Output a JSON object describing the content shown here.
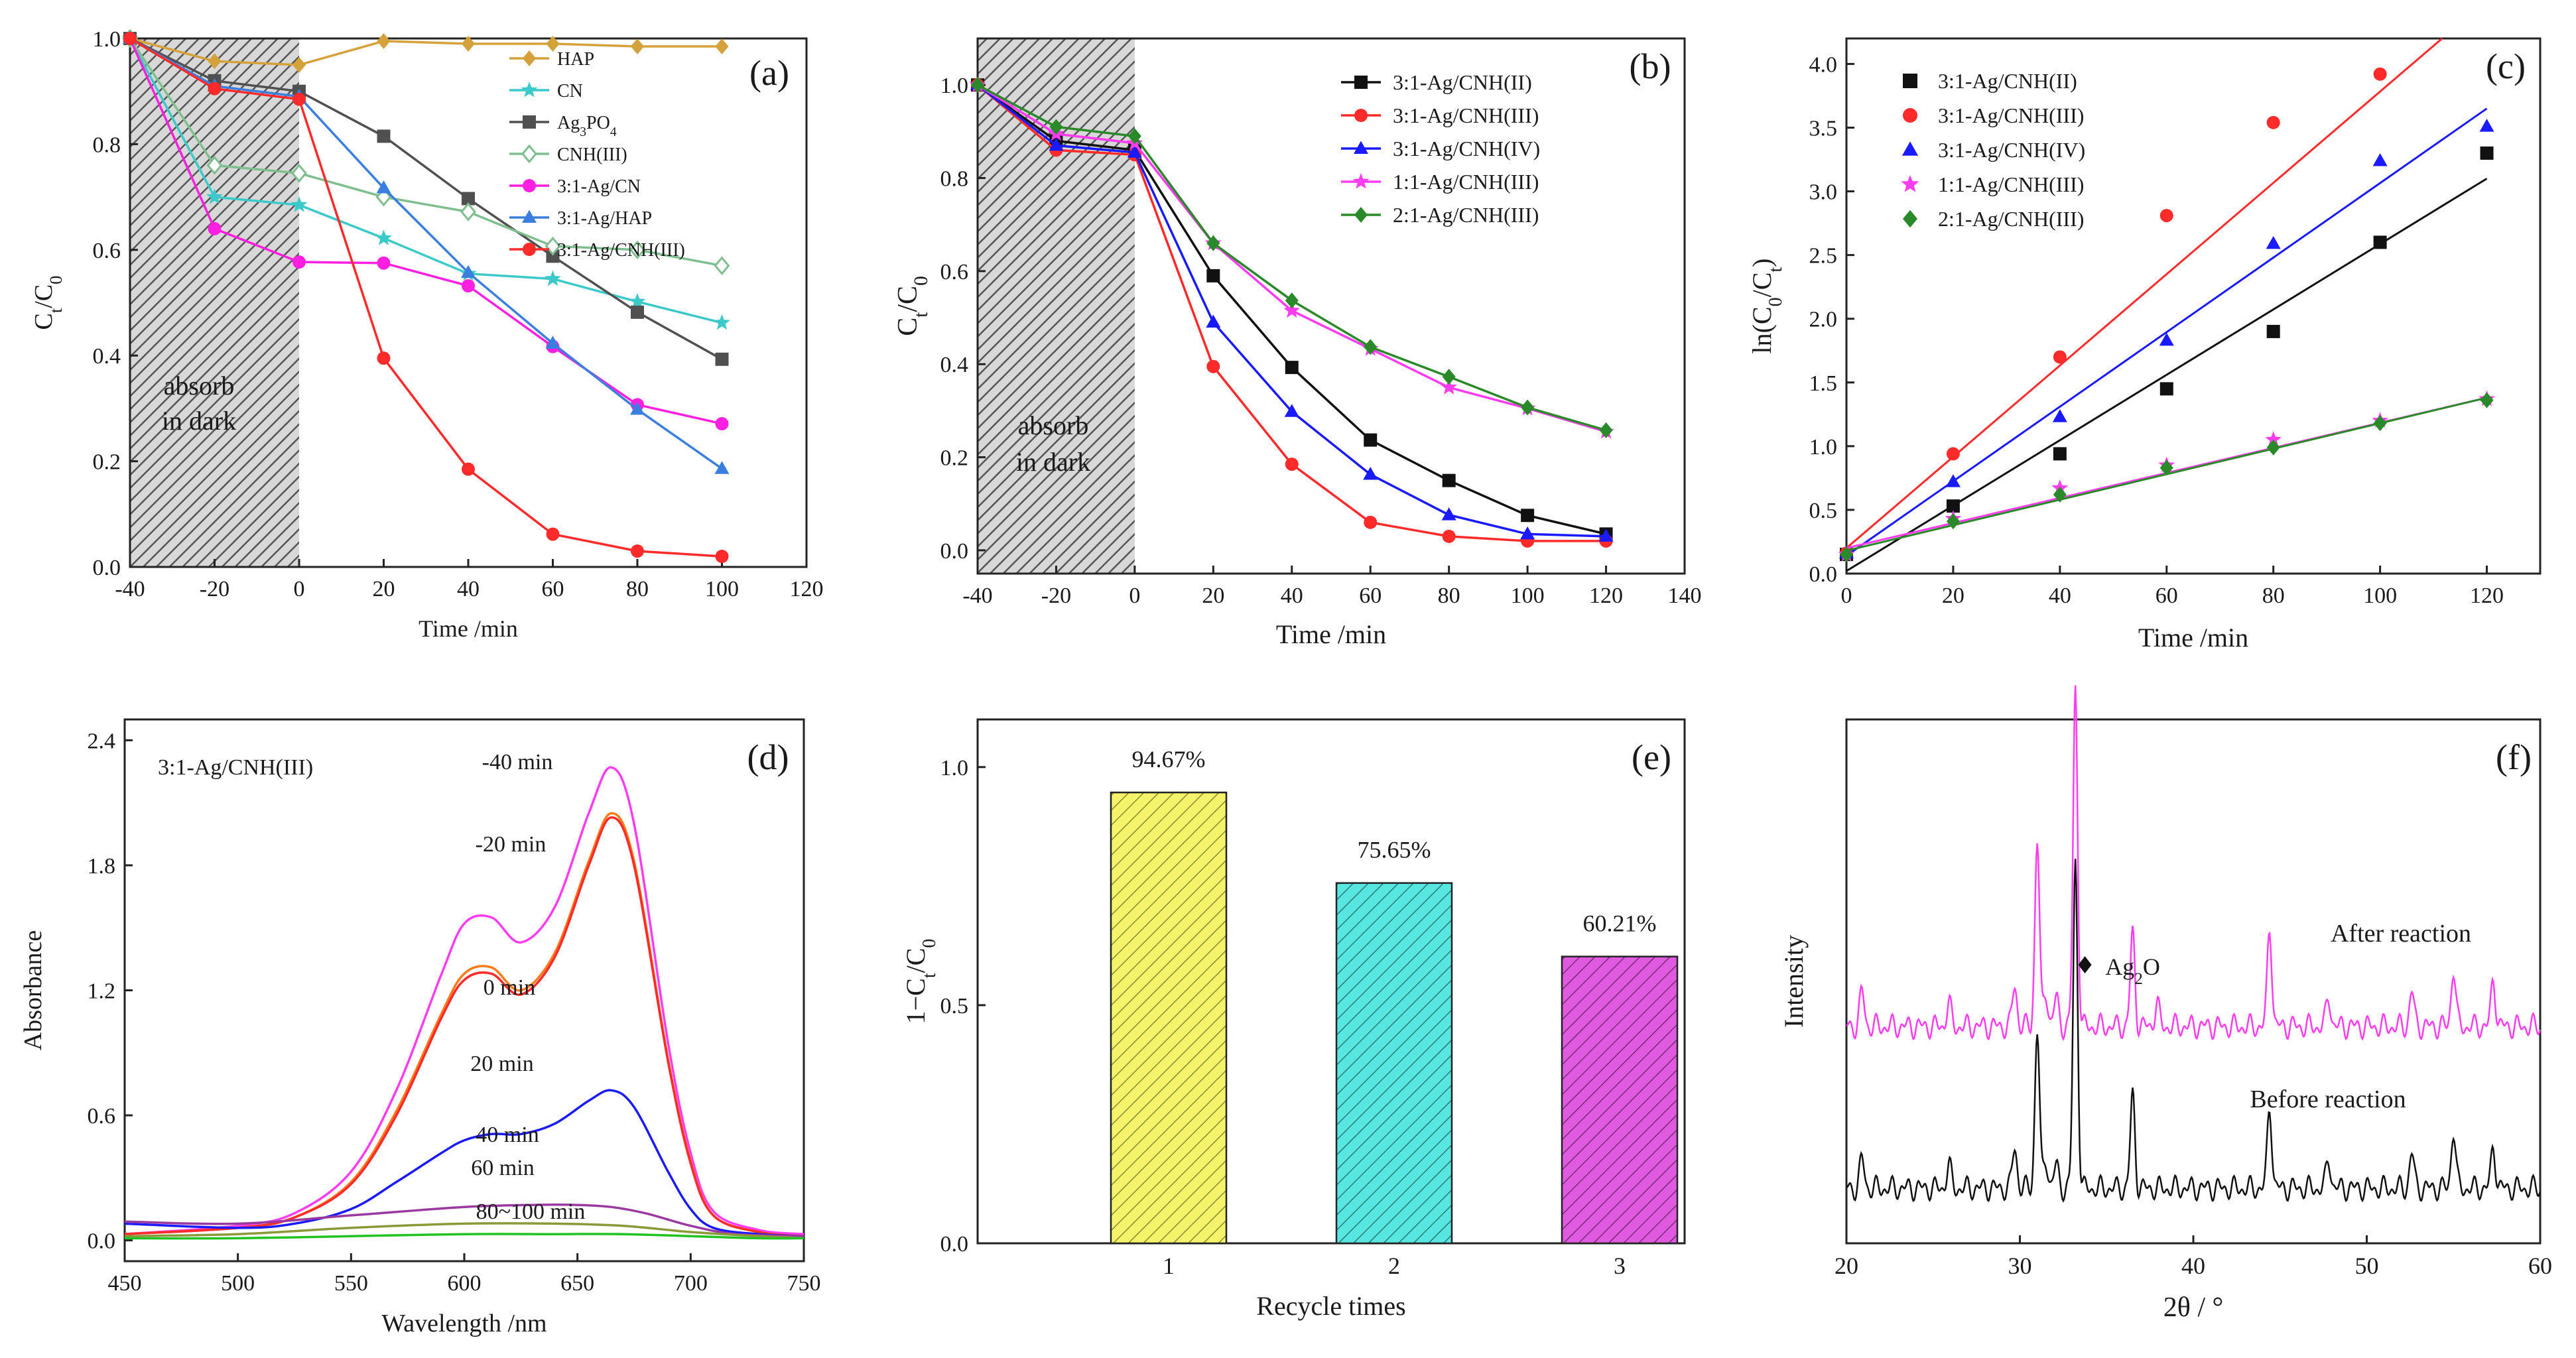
{
  "figure_title": "",
  "colors": {
    "hap": "#d4a13a",
    "cn": "#3cc9c9",
    "ag3po4": "#505050",
    "cnh3": "#7fbf8f",
    "agcn": "#ff1fe0",
    "aghap": "#3a7fe0",
    "agcnh3": "#ff2a2a",
    "black": "#111111",
    "red": "#ff2a2a",
    "blue": "#1a1aff",
    "magenta": "#ff3cf0",
    "green": "#2a8a2a",
    "orange": "#ff7a1a",
    "violet": "#9a3aa0",
    "olive": "#8a9a3a",
    "lime": "#22c222",
    "bar1": "#f4f36a",
    "bar2": "#57e6e0",
    "bar3": "#e05ae0"
  },
  "chart_data": [
    {
      "panel": "(a)",
      "type": "line",
      "title": "",
      "xlabel": "Time /min",
      "ylabel": "Ct/C0",
      "xlim": [
        -40,
        120
      ],
      "ylim": [
        0.0,
        1.0
      ],
      "xticks": [
        "-40",
        "-20",
        "0",
        "20",
        "40",
        "60",
        "80",
        "100",
        "120"
      ],
      "yticks": [
        "0.0",
        "0.2",
        "0.4",
        "0.6",
        "0.8",
        "1.0"
      ],
      "shade_label": [
        "absorb",
        "in dark"
      ],
      "shade_range": [
        -40,
        0
      ],
      "legend": "top-right",
      "series": [
        {
          "name": "HAP",
          "color_key": "hap",
          "marker": "diamond",
          "x": [
            -40,
            -20,
            0,
            20,
            40,
            60,
            80,
            100
          ],
          "y": [
            1.0,
            0.957,
            0.95,
            0.995,
            0.99,
            0.99,
            0.985,
            0.985
          ]
        },
        {
          "name": "CN",
          "color_key": "cn",
          "marker": "star",
          "x": [
            -40,
            -20,
            0,
            20,
            40,
            60,
            80,
            100
          ],
          "y": [
            1.0,
            0.7,
            0.685,
            0.622,
            0.555,
            0.545,
            0.502,
            0.462
          ]
        },
        {
          "name": "Ag3PO4",
          "color_key": "ag3po4",
          "marker": "square",
          "x": [
            -40,
            -20,
            0,
            20,
            40,
            60,
            80,
            100
          ],
          "y": [
            1.0,
            0.92,
            0.9,
            0.815,
            0.697,
            0.588,
            0.482,
            0.393
          ]
        },
        {
          "name": "CNH(III)",
          "color_key": "cnh3",
          "marker": "diamond-open",
          "x": [
            -40,
            -20,
            0,
            20,
            40,
            60,
            80,
            100
          ],
          "y": [
            1.0,
            0.76,
            0.745,
            0.7,
            0.672,
            0.607,
            0.6,
            0.57
          ]
        },
        {
          "name": "3:1-Ag/CN",
          "color_key": "agcn",
          "marker": "circle",
          "x": [
            -40,
            -20,
            0,
            20,
            40,
            60,
            80,
            100
          ],
          "y": [
            1.0,
            0.64,
            0.577,
            0.575,
            0.532,
            0.417,
            0.307,
            0.271
          ]
        },
        {
          "name": "3:1-Ag/HAP",
          "color_key": "aghap",
          "marker": "triangle",
          "x": [
            -40,
            -20,
            0,
            20,
            40,
            60,
            80,
            100
          ],
          "y": [
            1.0,
            0.91,
            0.89,
            0.717,
            0.557,
            0.423,
            0.298,
            0.186
          ]
        },
        {
          "name": "3:1-Ag/CNH(III)",
          "color_key": "agcnh3",
          "marker": "circle",
          "x": [
            -40,
            -20,
            0,
            20,
            40,
            60,
            80,
            100
          ],
          "y": [
            1.0,
            0.905,
            0.885,
            0.395,
            0.185,
            0.062,
            0.03,
            0.02
          ]
        }
      ]
    },
    {
      "panel": "(b)",
      "type": "line",
      "title": "",
      "xlabel": "Time /min",
      "ylabel": "Ct/C0",
      "xlim": [
        -40,
        140
      ],
      "ylim": [
        -0.05,
        1.1
      ],
      "xticks": [
        "-40",
        "-20",
        "0",
        "20",
        "40",
        "60",
        "80",
        "100",
        "120",
        "140"
      ],
      "yticks": [
        "0.0",
        "0.2",
        "0.4",
        "0.6",
        "0.8",
        "1.0"
      ],
      "shade_label": [
        "absorb",
        "in dark"
      ],
      "shade_range": [
        -40,
        0
      ],
      "legend": "top-right",
      "series": [
        {
          "name": "3:1-Ag/CNH(II)",
          "color_key": "black",
          "marker": "square",
          "x": [
            -40,
            -20,
            0,
            20,
            40,
            60,
            80,
            100,
            120
          ],
          "y": [
            1.0,
            0.88,
            0.86,
            0.59,
            0.393,
            0.237,
            0.15,
            0.075,
            0.035
          ]
        },
        {
          "name": "3:1-Ag/CNH(III)",
          "color_key": "red",
          "marker": "circle",
          "x": [
            -40,
            -20,
            0,
            20,
            40,
            60,
            80,
            100,
            120
          ],
          "y": [
            1.0,
            0.86,
            0.85,
            0.395,
            0.185,
            0.06,
            0.03,
            0.02,
            0.02
          ]
        },
        {
          "name": "3:1-Ag/CNH(IV)",
          "color_key": "blue",
          "marker": "triangle",
          "x": [
            -40,
            -20,
            0,
            20,
            40,
            60,
            80,
            100,
            120
          ],
          "y": [
            1.0,
            0.87,
            0.855,
            0.49,
            0.298,
            0.163,
            0.076,
            0.035,
            0.03
          ]
        },
        {
          "name": "1:1-Ag/CNH(III)",
          "color_key": "magenta",
          "marker": "star",
          "x": [
            -40,
            -20,
            0,
            20,
            40,
            60,
            80,
            100,
            120
          ],
          "y": [
            1.0,
            0.895,
            0.875,
            0.66,
            0.515,
            0.433,
            0.35,
            0.305,
            0.255
          ]
        },
        {
          "name": "2:1-Ag/CNH(III)",
          "color_key": "green",
          "marker": "diamond",
          "x": [
            -40,
            -20,
            0,
            20,
            40,
            60,
            80,
            100,
            120
          ],
          "y": [
            1.0,
            0.91,
            0.89,
            0.66,
            0.537,
            0.437,
            0.373,
            0.307,
            0.258
          ]
        }
      ]
    },
    {
      "panel": "(c)",
      "type": "scatter",
      "title": "",
      "xlabel": "Time /min",
      "ylabel": "ln(C0/Ct)",
      "xlim": [
        0,
        130
      ],
      "ylim": [
        0.0,
        4.2
      ],
      "xticks": [
        "0",
        "20",
        "40",
        "60",
        "80",
        "100",
        "120"
      ],
      "yticks": [
        "0.0",
        "0.5",
        "1.0",
        "1.5",
        "2.0",
        "2.5",
        "3.0",
        "3.5",
        "4.0"
      ],
      "legend": "top-left",
      "series": [
        {
          "name": "3:1-Ag/CNH(II)",
          "color_key": "black",
          "marker": "square",
          "x": [
            0,
            20,
            40,
            60,
            80,
            100,
            120
          ],
          "y": [
            0.15,
            0.53,
            0.94,
            1.45,
            1.9,
            2.6,
            3.3
          ],
          "fit": [
            [
              0,
              0.02
            ],
            [
              120,
              3.1
            ]
          ]
        },
        {
          "name": "3:1-Ag/CNH(III)",
          "color_key": "red",
          "marker": "circle",
          "x": [
            0,
            20,
            40,
            60,
            80,
            100
          ],
          "y": [
            0.16,
            0.94,
            1.7,
            2.81,
            3.54,
            3.92
          ],
          "fit": [
            [
              0,
              0.2
            ],
            [
              120,
              4.5
            ]
          ]
        },
        {
          "name": "3:1-Ag/CNH(IV)",
          "color_key": "blue",
          "marker": "triangle",
          "x": [
            0,
            20,
            40,
            60,
            80,
            100,
            120
          ],
          "y": [
            0.16,
            0.72,
            1.23,
            1.83,
            2.59,
            3.24,
            3.51
          ],
          "fit": [
            [
              0,
              0.14
            ],
            [
              120,
              3.65
            ]
          ]
        },
        {
          "name": "1:1-Ag/CNH(III)",
          "color_key": "magenta",
          "marker": "star",
          "x": [
            0,
            20,
            40,
            60,
            80,
            100,
            120
          ],
          "y": [
            0.15,
            0.43,
            0.67,
            0.85,
            1.05,
            1.2,
            1.37
          ],
          "fit": [
            [
              0,
              0.2
            ],
            [
              120,
              1.38
            ]
          ]
        },
        {
          "name": "2:1-Ag/CNH(III)",
          "color_key": "green",
          "marker": "diamond",
          "x": [
            0,
            20,
            40,
            60,
            80,
            100,
            120
          ],
          "y": [
            0.15,
            0.41,
            0.62,
            0.83,
            0.99,
            1.18,
            1.36
          ],
          "fit": [
            [
              0,
              0.18
            ],
            [
              120,
              1.38
            ]
          ]
        }
      ]
    },
    {
      "panel": "(d)",
      "type": "line",
      "title": "",
      "xlabel": "Wavelength /nm",
      "ylabel": "Absorbance",
      "xlim": [
        450,
        750
      ],
      "ylim": [
        -0.1,
        2.5
      ],
      "xticks": [
        "450",
        "500",
        "550",
        "600",
        "650",
        "700",
        "750"
      ],
      "yticks": [
        "0.0",
        "0.6",
        "1.2",
        "1.8",
        "2.4"
      ],
      "sample_label": "3:1-Ag/CNH(III)",
      "annotations": [
        "-40 min",
        "-20 min",
        "0 min",
        "20 min",
        "40 min",
        "60 min",
        "80~100 min"
      ],
      "series": [
        {
          "name": "-40 min",
          "color_key": "magenta",
          "x": [
            450,
            500,
            525,
            550,
            570,
            590,
            600,
            612,
            625,
            640,
            655,
            665,
            675,
            690,
            700,
            710,
            730,
            750
          ],
          "y": [
            0.03,
            0.07,
            0.13,
            0.33,
            0.72,
            1.28,
            1.52,
            1.55,
            1.43,
            1.6,
            2.05,
            2.27,
            2.0,
            0.95,
            0.42,
            0.14,
            0.05,
            0.03
          ]
        },
        {
          "name": "-20 min",
          "color_key": "orange",
          "x": [
            450,
            500,
            525,
            550,
            570,
            590,
            600,
            612,
            625,
            640,
            655,
            665,
            675,
            690,
            700,
            710,
            730,
            750
          ],
          "y": [
            0.03,
            0.06,
            0.11,
            0.28,
            0.62,
            1.09,
            1.28,
            1.31,
            1.2,
            1.38,
            1.82,
            2.05,
            1.82,
            0.87,
            0.38,
            0.12,
            0.04,
            0.02
          ]
        },
        {
          "name": "0 min",
          "color_key": "red",
          "x": [
            450,
            500,
            525,
            550,
            570,
            590,
            600,
            612,
            625,
            640,
            655,
            665,
            675,
            690,
            700,
            710,
            730,
            750
          ],
          "y": [
            0.03,
            0.06,
            0.11,
            0.27,
            0.6,
            1.07,
            1.25,
            1.28,
            1.18,
            1.36,
            1.8,
            2.03,
            1.8,
            0.86,
            0.37,
            0.12,
            0.04,
            0.02
          ]
        },
        {
          "name": "20 min",
          "color_key": "blue",
          "x": [
            450,
            500,
            525,
            550,
            570,
            590,
            600,
            612,
            625,
            640,
            655,
            665,
            675,
            690,
            700,
            710,
            730,
            750
          ],
          "y": [
            0.08,
            0.06,
            0.08,
            0.15,
            0.28,
            0.42,
            0.48,
            0.51,
            0.51,
            0.56,
            0.67,
            0.72,
            0.64,
            0.33,
            0.15,
            0.06,
            0.03,
            0.02
          ]
        },
        {
          "name": "40 min",
          "color_key": "violet",
          "x": [
            450,
            500,
            550,
            600,
            630,
            650,
            665,
            680,
            700,
            720,
            750
          ],
          "y": [
            0.09,
            0.08,
            0.12,
            0.16,
            0.17,
            0.17,
            0.16,
            0.13,
            0.07,
            0.03,
            0.02
          ]
        },
        {
          "name": "60 min",
          "color_key": "olive",
          "x": [
            450,
            500,
            550,
            600,
            640,
            670,
            700,
            730,
            750
          ],
          "y": [
            0.02,
            0.03,
            0.06,
            0.08,
            0.08,
            0.07,
            0.04,
            0.02,
            0.01
          ]
        },
        {
          "name": "80~100 min",
          "color_key": "lime",
          "x": [
            450,
            500,
            550,
            600,
            640,
            670,
            700,
            730,
            750
          ],
          "y": [
            0.01,
            0.01,
            0.02,
            0.03,
            0.03,
            0.03,
            0.02,
            0.01,
            0.01
          ]
        }
      ]
    },
    {
      "panel": "(e)",
      "type": "bar",
      "title": "",
      "xlabel": "Recycle times",
      "ylabel": "1-Ct/C0",
      "ylim": [
        0.0,
        1.1
      ],
      "yticks": [
        "0.0",
        "0.5",
        "1.0"
      ],
      "categories": [
        "1",
        "2",
        "3"
      ],
      "values": [
        0.9467,
        0.7565,
        0.6021
      ],
      "labels": [
        "94.67%",
        "75.65%",
        "60.21%"
      ]
    },
    {
      "panel": "(f)",
      "type": "line",
      "title": "",
      "xlabel": "2θ / °",
      "ylabel": "Intensity",
      "xlim": [
        20,
        60
      ],
      "xticks": [
        "20",
        "30",
        "40",
        "50",
        "60"
      ],
      "marker_label": "Ag2O",
      "series": [
        {
          "name": "After reaction",
          "color_key": "magenta",
          "peaks": [
            [
              20.9,
              0.06
            ],
            [
              25.9,
              0.04
            ],
            [
              29.7,
              0.07
            ],
            [
              31.0,
              0.32
            ],
            [
              31.5,
              0.06
            ],
            [
              32.1,
              0.05
            ],
            [
              33.2,
              0.58
            ],
            [
              36.5,
              0.16
            ],
            [
              37.9,
              0.04
            ],
            [
              44.4,
              0.17
            ],
            [
              47.8,
              0.05
            ],
            [
              52.6,
              0.06
            ],
            [
              55.0,
              0.1
            ],
            [
              57.3,
              0.08
            ]
          ]
        },
        {
          "name": "Before reaction",
          "color_key": "black",
          "peaks": [
            [
              20.9,
              0.05
            ],
            [
              25.9,
              0.04
            ],
            [
              29.7,
              0.07
            ],
            [
              31.0,
              0.27
            ],
            [
              31.5,
              0.05
            ],
            [
              32.1,
              0.04
            ],
            [
              33.2,
              0.56
            ],
            [
              36.5,
              0.16
            ],
            [
              44.4,
              0.14
            ],
            [
              47.8,
              0.05
            ],
            [
              52.6,
              0.06
            ],
            [
              55.0,
              0.1
            ],
            [
              57.3,
              0.07
            ]
          ]
        }
      ]
    }
  ]
}
